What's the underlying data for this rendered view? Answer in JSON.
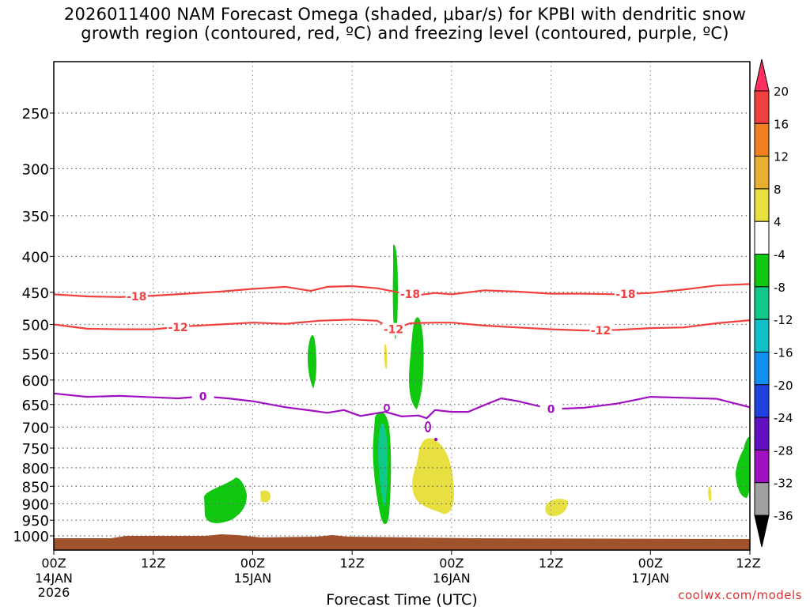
{
  "chart_data": {
    "type": "time-height cross section",
    "title": {
      "line1": "2026011400 NAM Forecast Omega (shaded, μbar/s) for KPBI with dendritic snow",
      "line2": "growth region (contoured, red, ºC) and freezing level (contoured, purple, ºC)"
    },
    "xlabel": "Forecast Time (UTC)",
    "credit": "coolwx.com/models",
    "x_hours_range": [
      0,
      84
    ],
    "y_pressure_range_hPa": [
      1000,
      200
    ],
    "y_ticks": [
      250,
      300,
      350,
      400,
      450,
      500,
      550,
      600,
      650,
      700,
      750,
      800,
      850,
      900,
      950,
      1000
    ],
    "x_ticks": [
      {
        "hour": 0,
        "label": "00Z",
        "sub1": "14JAN",
        "sub2": "2026"
      },
      {
        "hour": 12,
        "label": "12Z",
        "sub1": "",
        "sub2": ""
      },
      {
        "hour": 24,
        "label": "00Z",
        "sub1": "15JAN",
        "sub2": ""
      },
      {
        "hour": 36,
        "label": "12Z",
        "sub1": "",
        "sub2": ""
      },
      {
        "hour": 48,
        "label": "00Z",
        "sub1": "16JAN",
        "sub2": ""
      },
      {
        "hour": 60,
        "label": "12Z",
        "sub1": "",
        "sub2": ""
      },
      {
        "hour": 72,
        "label": "00Z",
        "sub1": "17JAN",
        "sub2": ""
      },
      {
        "hour": 84,
        "label": "12Z",
        "sub1": "",
        "sub2": ""
      }
    ],
    "colorbar": {
      "labels": [
        "20",
        "16",
        "12",
        "8",
        "4",
        "-4",
        "-8",
        "-12",
        "-16",
        "-20",
        "-24",
        "-28",
        "-32",
        "-36"
      ],
      "colors": [
        "#ff3060",
        "#f04040",
        "#f08020",
        "#e8b030",
        "#e8e040",
        "#ffffff",
        "#10c810",
        "#10c888",
        "#10c0c8",
        "#1090f0",
        "#2040e0",
        "#6010c0",
        "#a010c0",
        "#a0a0a0",
        "#000000"
      ]
    },
    "contours": [
      {
        "name": "-18",
        "color": "#f04040",
        "label_hours": [
          10,
          43,
          69
        ],
        "points": [
          [
            0,
            453
          ],
          [
            4,
            456
          ],
          [
            8,
            457
          ],
          [
            12,
            455
          ],
          [
            16,
            452
          ],
          [
            20,
            449
          ],
          [
            24,
            445
          ],
          [
            28,
            442
          ],
          [
            31,
            448
          ],
          [
            33,
            442
          ],
          [
            36,
            441
          ],
          [
            39,
            444
          ],
          [
            42,
            451
          ],
          [
            44,
            454
          ],
          [
            46,
            451
          ],
          [
            48,
            453
          ],
          [
            52,
            447
          ],
          [
            56,
            449
          ],
          [
            60,
            452
          ],
          [
            64,
            452
          ],
          [
            68,
            453
          ],
          [
            72,
            451
          ],
          [
            76,
            446
          ],
          [
            80,
            440
          ],
          [
            84,
            438
          ]
        ]
      },
      {
        "name": "-12",
        "color": "#f04040",
        "label_hours": [
          15,
          41,
          66
        ],
        "points": [
          [
            0,
            500
          ],
          [
            4,
            507
          ],
          [
            8,
            508
          ],
          [
            12,
            508
          ],
          [
            16,
            503
          ],
          [
            20,
            500
          ],
          [
            24,
            497
          ],
          [
            28,
            499
          ],
          [
            32,
            494
          ],
          [
            36,
            492
          ],
          [
            39,
            494
          ],
          [
            41,
            508
          ],
          [
            43,
            498
          ],
          [
            46,
            497
          ],
          [
            48,
            497
          ],
          [
            52,
            502
          ],
          [
            56,
            505
          ],
          [
            60,
            508
          ],
          [
            64,
            510
          ],
          [
            68,
            509
          ],
          [
            72,
            506
          ],
          [
            76,
            505
          ],
          [
            80,
            498
          ],
          [
            84,
            493
          ]
        ]
      },
      {
        "name": "0",
        "color": "#a010c0",
        "label_hours": [
          18,
          60
        ],
        "points": [
          [
            0,
            627
          ],
          [
            4,
            634
          ],
          [
            8,
            632
          ],
          [
            12,
            635
          ],
          [
            15,
            637
          ],
          [
            18,
            633
          ],
          [
            21,
            637
          ],
          [
            24,
            643
          ],
          [
            28,
            656
          ],
          [
            31,
            663
          ],
          [
            33,
            668
          ],
          [
            35,
            662
          ],
          [
            37,
            675
          ],
          [
            40,
            666
          ],
          [
            42,
            676
          ],
          [
            44,
            674
          ],
          [
            45,
            680
          ],
          [
            46,
            662
          ],
          [
            48,
            666
          ],
          [
            50,
            666
          ],
          [
            52,
            651
          ],
          [
            54,
            637
          ],
          [
            56,
            643
          ],
          [
            60,
            660
          ],
          [
            64,
            657
          ],
          [
            68,
            648
          ],
          [
            72,
            634
          ],
          [
            76,
            636
          ],
          [
            80,
            638
          ],
          [
            84,
            656
          ]
        ]
      }
    ],
    "shaded_regions": [
      {
        "name": "omega -4 to -8 near 14JAN 20Z",
        "level": -6,
        "color": "#10c810"
      },
      {
        "name": "omega -4 to -8 near 15JAN 07Z",
        "level": -6,
        "color": "#10c810"
      },
      {
        "name": "omega -4 to -8 near 15JAN 16Z",
        "level": -6,
        "color": "#10c810"
      },
      {
        "name": "omega -8 to -12 near 15JAN 15Z",
        "level": -10,
        "color": "#10c888"
      },
      {
        "name": "omega 4 to 8 near 15JAN 21Z",
        "level": 6,
        "color": "#e8e040"
      },
      {
        "name": "omega 4 to 8 near 16JAN 12Z",
        "level": 6,
        "color": "#e8e040"
      },
      {
        "name": "omega -4 to -8 near 17JAN 12Z",
        "level": -6,
        "color": "#10c810"
      }
    ]
  }
}
